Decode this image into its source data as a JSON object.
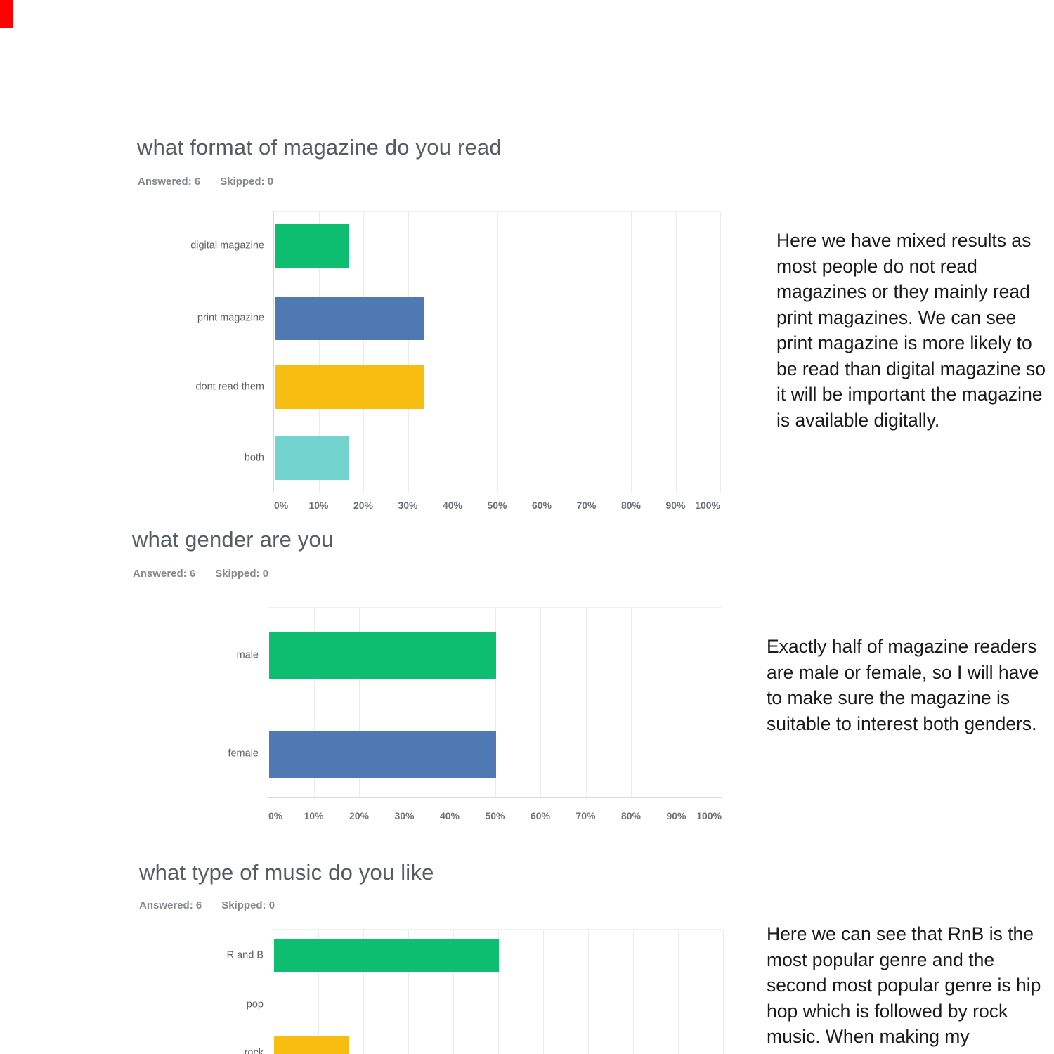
{
  "document": {
    "background": "#ffffff",
    "red_marker_color": "#fe0000"
  },
  "colors": {
    "green": "#0ebe70",
    "blue": "#4e79b2",
    "yellow": "#f8bd11",
    "teal": "#72d3cf",
    "title_text": "#575c63",
    "meta_text": "#85888e",
    "category_text": "#5d6167",
    "tick_text": "#6c7077",
    "annotation_text": "#1a1a1a",
    "gridline": "#e9ebed",
    "axis_line": "#d7d9db"
  },
  "sections": [
    {
      "answered": "Answered: 6",
      "skipped": "Skipped: 0",
      "annotation_lines": [
        "Here we have mixed results as",
        "most people do not read",
        "magazines or they mainly read",
        "print magazines. We can see",
        "print magazine is more likely to",
        "be read than digital magazine so",
        "it will be important the magazine",
        "is available digitally."
      ]
    },
    {
      "answered": "Answered: 6",
      "skipped": "Skipped: 0",
      "annotation_lines": [
        "Exactly half of magazine readers",
        "are male or female, so I will have",
        "to make sure the magazine is",
        "suitable to interest both genders."
      ]
    },
    {
      "answered": "Answered: 6",
      "skipped": "Skipped: 0",
      "annotation_lines": [
        "Here we can see that RnB is the",
        "most popular genre and the",
        "second most popular genre is hip",
        "hop which is followed by rock",
        "music. When making my"
      ]
    }
  ],
  "chart_data": [
    {
      "type": "bar",
      "orientation": "horizontal",
      "title": "what format of magazine do you read",
      "categories": [
        "digital magazine",
        "print magazine",
        "dont read them",
        "both"
      ],
      "values": [
        16.67,
        33.33,
        33.33,
        16.67
      ],
      "unit": "%",
      "xlim": [
        0,
        100
      ],
      "bar_colors": [
        "#0ebe70",
        "#4e79b2",
        "#f8bd11",
        "#72d3cf"
      ],
      "x_ticks": [
        "0%",
        "10%",
        "20%",
        "30%",
        "40%",
        "50%",
        "60%",
        "70%",
        "80%",
        "90%",
        "100%"
      ],
      "grid": true,
      "legend": false
    },
    {
      "type": "bar",
      "orientation": "horizontal",
      "title": "what gender are you",
      "categories": [
        "male",
        "female"
      ],
      "values": [
        50,
        50
      ],
      "unit": "%",
      "xlim": [
        0,
        100
      ],
      "bar_colors": [
        "#0ebe70",
        "#4e79b2"
      ],
      "x_ticks": [
        "0%",
        "10%",
        "20%",
        "30%",
        "40%",
        "50%",
        "60%",
        "70%",
        "80%",
        "90%",
        "100%"
      ],
      "grid": true,
      "legend": false
    },
    {
      "type": "bar",
      "orientation": "horizontal",
      "title": "what type of music do you like",
      "categories": [
        "R and B",
        "pop",
        "rock"
      ],
      "values": [
        50,
        0,
        16.67
      ],
      "unit": "%",
      "xlim": [
        0,
        100
      ],
      "bar_colors": [
        "#0ebe70",
        "#4e79b2",
        "#f8bd11"
      ],
      "x_ticks": [],
      "grid": true,
      "legend": false
    }
  ]
}
